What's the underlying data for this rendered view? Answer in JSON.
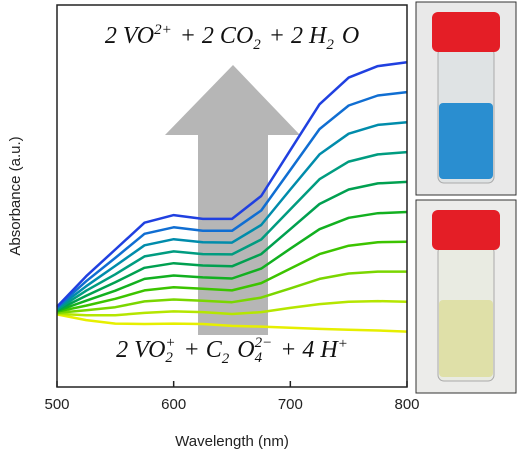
{
  "chart_data": {
    "type": "line",
    "x_label": "Wavelength (nm)",
    "y_label": "Absorbance (a.u.)",
    "x": [
      500,
      525,
      550,
      575,
      600,
      625,
      650,
      675,
      700,
      725,
      750,
      775,
      800
    ],
    "xlim": [
      500,
      800
    ],
    "xticks": [
      500,
      600,
      700,
      800
    ],
    "ylim": [
      0,
      1
    ],
    "series": [
      {
        "color": "#e6ef00",
        "values": [
          0.19,
          0.175,
          0.166,
          0.165,
          0.166,
          0.165,
          0.16,
          0.158,
          0.155,
          0.152,
          0.15,
          0.148,
          0.145
        ]
      },
      {
        "color": "#b5e600",
        "values": [
          0.192,
          0.188,
          0.188,
          0.194,
          0.198,
          0.196,
          0.191,
          0.196,
          0.207,
          0.217,
          0.223,
          0.225,
          0.223
        ]
      },
      {
        "color": "#7ad600",
        "values": [
          0.194,
          0.201,
          0.209,
          0.224,
          0.229,
          0.226,
          0.222,
          0.234,
          0.258,
          0.283,
          0.297,
          0.302,
          0.302
        ]
      },
      {
        "color": "#3cc400",
        "values": [
          0.197,
          0.213,
          0.231,
          0.253,
          0.261,
          0.257,
          0.253,
          0.272,
          0.31,
          0.348,
          0.37,
          0.379,
          0.38
        ]
      },
      {
        "color": "#12b020",
        "values": [
          0.199,
          0.226,
          0.252,
          0.283,
          0.292,
          0.287,
          0.284,
          0.31,
          0.362,
          0.413,
          0.443,
          0.455,
          0.458
        ]
      },
      {
        "color": "#00a050",
        "values": [
          0.201,
          0.239,
          0.274,
          0.312,
          0.324,
          0.318,
          0.316,
          0.348,
          0.413,
          0.479,
          0.517,
          0.533,
          0.537
        ]
      },
      {
        "color": "#009c80",
        "values": [
          0.203,
          0.252,
          0.295,
          0.342,
          0.355,
          0.348,
          0.347,
          0.386,
          0.465,
          0.544,
          0.59,
          0.609,
          0.615
        ]
      },
      {
        "color": "#008cab",
        "values": [
          0.206,
          0.264,
          0.317,
          0.371,
          0.387,
          0.379,
          0.378,
          0.424,
          0.517,
          0.609,
          0.663,
          0.686,
          0.693
        ]
      },
      {
        "color": "#106ed2",
        "values": [
          0.208,
          0.277,
          0.338,
          0.401,
          0.418,
          0.409,
          0.409,
          0.462,
          0.568,
          0.675,
          0.737,
          0.763,
          0.772
        ]
      },
      {
        "color": "#2040e0",
        "values": [
          0.21,
          0.29,
          0.36,
          0.43,
          0.45,
          0.44,
          0.44,
          0.5,
          0.62,
          0.74,
          0.81,
          0.84,
          0.85
        ]
      }
    ],
    "top_equation": [
      {
        "text": "2 VO",
        "sup": "2+"
      },
      {
        "text": "+ 2 CO",
        "sub": "2"
      },
      {
        "text": "+ 2 H",
        "sub": "2"
      },
      {
        "text": "O"
      }
    ],
    "bottom_equation": [
      {
        "text": "2 VO",
        "sub": "2",
        "sup": "+"
      },
      {
        "text": "+ C",
        "sub": "2"
      },
      {
        "text": "O",
        "sub": "4",
        "sup": "2−"
      },
      {
        "text": "+ 4 H",
        "sup": "+"
      }
    ]
  }
}
